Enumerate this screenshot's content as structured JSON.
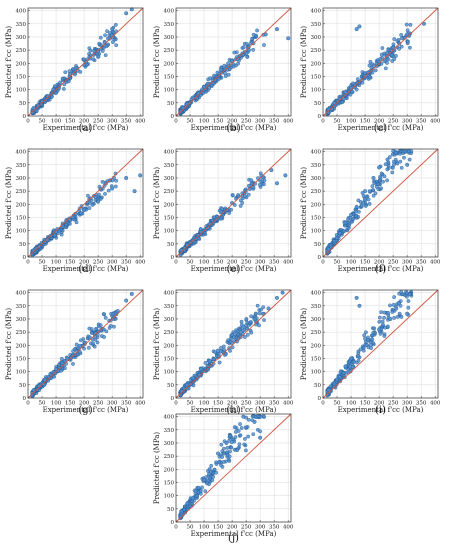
{
  "figure": {
    "panel_labels": [
      "(a)",
      "(b)",
      "(c)",
      "(d)",
      "(e)",
      "(f)",
      "(g)",
      "(h)",
      "(i)",
      "(j)"
    ]
  },
  "chart_data": [
    {
      "type": "scatter",
      "label": "(a)",
      "xlabel": "Experimental f'cc (MPa)",
      "ylabel": "Predicted f'cc (MPa)",
      "xlim": [
        0,
        410
      ],
      "ylim": [
        0,
        410
      ],
      "xticks": [
        0,
        50,
        100,
        150,
        200,
        250,
        300,
        350,
        400
      ],
      "yticks": [
        0,
        50,
        100,
        150,
        200,
        250,
        300,
        350,
        400
      ],
      "grid": true,
      "reference_line": "y = x",
      "point_color": "#4e8fd0",
      "line_color": "#d0553f",
      "trend": {
        "slope": 1.0,
        "noise": 0.22,
        "seed": 11,
        "n": 230
      },
      "points": [
        [
          20,
          30
        ],
        [
          35,
          40
        ],
        [
          50,
          55
        ],
        [
          70,
          75
        ],
        [
          90,
          100
        ],
        [
          110,
          105
        ],
        [
          150,
          160
        ],
        [
          200,
          215
        ],
        [
          250,
          245
        ],
        [
          300,
          330
        ],
        [
          350,
          390
        ],
        [
          370,
          405
        ]
      ]
    },
    {
      "type": "scatter",
      "label": "(b)",
      "xlabel": "Experimental f'cc (MPa)",
      "ylabel": "Predicted f'cc (MPa)",
      "xlim": [
        0,
        410
      ],
      "ylim": [
        0,
        410
      ],
      "xticks": [
        0,
        50,
        100,
        150,
        200,
        250,
        300,
        350,
        400
      ],
      "yticks": [
        0,
        50,
        100,
        150,
        200,
        250,
        300,
        350,
        400
      ],
      "grid": true,
      "reference_line": "y = x",
      "point_color": "#4e8fd0",
      "line_color": "#d0553f",
      "trend": {
        "slope": 1.0,
        "noise": 0.22,
        "seed": 23,
        "n": 230
      },
      "points": [
        [
          25,
          30
        ],
        [
          40,
          45
        ],
        [
          60,
          70
        ],
        [
          80,
          85
        ],
        [
          100,
          110
        ],
        [
          130,
          125
        ],
        [
          160,
          175
        ],
        [
          200,
          210
        ],
        [
          260,
          250
        ],
        [
          320,
          310
        ],
        [
          360,
          330
        ],
        [
          400,
          295
        ]
      ]
    },
    {
      "type": "scatter",
      "label": "(c)",
      "xlabel": "Experimental f'cc (MPa)",
      "ylabel": "Predicted f'cc (MPa)",
      "xlim": [
        0,
        410
      ],
      "ylim": [
        0,
        410
      ],
      "xticks": [
        0,
        50,
        100,
        150,
        200,
        250,
        300,
        350,
        400
      ],
      "yticks": [
        0,
        50,
        100,
        150,
        200,
        250,
        300,
        350,
        400
      ],
      "grid": true,
      "reference_line": "y = x",
      "point_color": "#4e8fd0",
      "line_color": "#d0553f",
      "trend": {
        "slope": 1.0,
        "noise": 0.24,
        "seed": 37,
        "n": 230
      },
      "points": [
        [
          20,
          25
        ],
        [
          40,
          50
        ],
        [
          60,
          65
        ],
        [
          80,
          90
        ],
        [
          100,
          105
        ],
        [
          120,
          330
        ],
        [
          130,
          340
        ],
        [
          160,
          165
        ],
        [
          200,
          205
        ],
        [
          250,
          260
        ],
        [
          300,
          310
        ],
        [
          360,
          350
        ]
      ]
    },
    {
      "type": "scatter",
      "label": "(d)",
      "xlabel": "Experimental f'cc (MPa)",
      "ylabel": "Predicted f'cc (MPa)",
      "xlim": [
        0,
        410
      ],
      "ylim": [
        0,
        410
      ],
      "xticks": [
        0,
        50,
        100,
        150,
        200,
        250,
        300,
        350,
        400
      ],
      "yticks": [
        0,
        50,
        100,
        150,
        200,
        250,
        300,
        350,
        400
      ],
      "grid": true,
      "reference_line": "y = x",
      "point_color": "#4e8fd0",
      "line_color": "#d0553f",
      "trend": {
        "slope": 0.92,
        "noise": 0.18,
        "seed": 41,
        "n": 230
      },
      "points": [
        [
          20,
          25
        ],
        [
          40,
          40
        ],
        [
          60,
          58
        ],
        [
          80,
          80
        ],
        [
          100,
          95
        ],
        [
          150,
          140
        ],
        [
          200,
          180
        ],
        [
          250,
          210
        ],
        [
          300,
          260
        ],
        [
          350,
          300
        ],
        [
          380,
          250
        ],
        [
          400,
          310
        ]
      ]
    },
    {
      "type": "scatter",
      "label": "(e)",
      "xlabel": "Experimental f'cc (MPa)",
      "ylabel": "Predicted f'cc (MPa)",
      "xlim": [
        0,
        410
      ],
      "ylim": [
        0,
        410
      ],
      "xticks": [
        0,
        50,
        100,
        150,
        200,
        250,
        300,
        350,
        400
      ],
      "yticks": [
        0,
        50,
        100,
        150,
        200,
        250,
        300,
        350,
        400
      ],
      "grid": true,
      "reference_line": "y = x",
      "point_color": "#4e8fd0",
      "line_color": "#d0553f",
      "trend": {
        "slope": 1.0,
        "noise": 0.2,
        "seed": 53,
        "n": 230
      },
      "points": [
        [
          20,
          25
        ],
        [
          40,
          45
        ],
        [
          60,
          62
        ],
        [
          90,
          95
        ],
        [
          120,
          125
        ],
        [
          160,
          170
        ],
        [
          200,
          205
        ],
        [
          260,
          270
        ],
        [
          300,
          290
        ],
        [
          340,
          330
        ],
        [
          360,
          280
        ],
        [
          390,
          310
        ]
      ]
    },
    {
      "type": "scatter",
      "label": "(f)",
      "xlabel": "Experimental f'cc (MPa)",
      "ylabel": "Predicted f'cc (MPa)",
      "xlim": [
        0,
        410
      ],
      "ylim": [
        0,
        410
      ],
      "xticks": [
        0,
        50,
        100,
        150,
        200,
        250,
        300,
        350,
        400
      ],
      "yticks": [
        0,
        50,
        100,
        150,
        200,
        250,
        300,
        350,
        400
      ],
      "grid": true,
      "reference_line": "y = x",
      "point_color": "#4e8fd0",
      "line_color": "#d0553f",
      "trend": {
        "slope": 1.45,
        "noise": 0.24,
        "seed": 67,
        "n": 230
      },
      "points": [
        [
          20,
          30
        ],
        [
          40,
          60
        ],
        [
          60,
          90
        ],
        [
          80,
          130
        ],
        [
          100,
          160
        ],
        [
          120,
          190
        ],
        [
          150,
          250
        ],
        [
          180,
          300
        ],
        [
          200,
          340
        ],
        [
          230,
          370
        ],
        [
          260,
          395
        ],
        [
          300,
          350
        ]
      ]
    },
    {
      "type": "scatter",
      "label": "(g)",
      "xlabel": "Experimental f'cc (MPa)",
      "ylabel": "Predicted f'cc (MPa)",
      "xlim": [
        0,
        410
      ],
      "ylim": [
        0,
        410
      ],
      "xticks": [
        0,
        50,
        100,
        150,
        200,
        250,
        300,
        350,
        400
      ],
      "yticks": [
        0,
        50,
        100,
        150,
        200,
        250,
        300,
        350,
        400
      ],
      "grid": true,
      "reference_line": "y = x",
      "point_color": "#4e8fd0",
      "line_color": "#d0553f",
      "trend": {
        "slope": 1.02,
        "noise": 0.22,
        "seed": 79,
        "n": 230
      },
      "points": [
        [
          20,
          30
        ],
        [
          40,
          45
        ],
        [
          60,
          70
        ],
        [
          80,
          90
        ],
        [
          100,
          110
        ],
        [
          140,
          150
        ],
        [
          180,
          190
        ],
        [
          220,
          230
        ],
        [
          270,
          260
        ],
        [
          320,
          330
        ],
        [
          350,
          370
        ],
        [
          370,
          395
        ]
      ]
    },
    {
      "type": "scatter",
      "label": "(h)",
      "xlabel": "Experimental f'cc (MPa)",
      "ylabel": "Predicted f'cc (MPa)",
      "xlim": [
        0,
        410
      ],
      "ylim": [
        0,
        410
      ],
      "xticks": [
        0,
        50,
        100,
        150,
        200,
        250,
        300,
        350,
        400
      ],
      "yticks": [
        0,
        50,
        100,
        150,
        200,
        250,
        300,
        350,
        400
      ],
      "grid": true,
      "reference_line": "y = x",
      "point_color": "#4e8fd0",
      "line_color": "#d0553f",
      "trend": {
        "slope": 1.08,
        "noise": 0.22,
        "seed": 83,
        "n": 230
      },
      "points": [
        [
          20,
          25
        ],
        [
          40,
          50
        ],
        [
          60,
          75
        ],
        [
          90,
          110
        ],
        [
          120,
          140
        ],
        [
          150,
          180
        ],
        [
          200,
          240
        ],
        [
          240,
          270
        ],
        [
          280,
          300
        ],
        [
          330,
          340
        ],
        [
          360,
          380
        ],
        [
          380,
          400
        ]
      ]
    },
    {
      "type": "scatter",
      "label": "(i)",
      "xlabel": "Experimental f'cc (MPa)",
      "ylabel": "Predicted f'cc (MPa)",
      "xlim": [
        0,
        410
      ],
      "ylim": [
        0,
        410
      ],
      "xticks": [
        0,
        50,
        100,
        150,
        200,
        250,
        300,
        350,
        400
      ],
      "yticks": [
        0,
        50,
        100,
        150,
        200,
        250,
        300,
        350,
        400
      ],
      "grid": true,
      "reference_line": "y = x",
      "point_color": "#4e8fd0",
      "line_color": "#d0553f",
      "trend": {
        "slope": 1.3,
        "noise": 0.26,
        "seed": 97,
        "n": 230
      },
      "points": [
        [
          20,
          30
        ],
        [
          40,
          55
        ],
        [
          60,
          80
        ],
        [
          80,
          120
        ],
        [
          100,
          150
        ],
        [
          120,
          380
        ],
        [
          130,
          350
        ],
        [
          160,
          220
        ],
        [
          200,
          260
        ],
        [
          240,
          300
        ],
        [
          270,
          360
        ],
        [
          300,
          320
        ]
      ]
    },
    {
      "type": "scatter",
      "label": "(j)",
      "xlabel": "Experimental f'cc (MPa)",
      "ylabel": "Predicted f'cc (MPa)",
      "xlim": [
        0,
        410
      ],
      "ylim": [
        0,
        410
      ],
      "xticks": [
        0,
        50,
        100,
        150,
        200,
        250,
        300,
        350,
        400
      ],
      "yticks": [
        0,
        50,
        100,
        150,
        200,
        250,
        300,
        350,
        400
      ],
      "grid": true,
      "reference_line": "y = x",
      "point_color": "#4e8fd0",
      "line_color": "#d0553f",
      "trend": {
        "slope": 1.45,
        "noise": 0.3,
        "seed": 101,
        "n": 230
      },
      "points": [
        [
          20,
          40
        ],
        [
          40,
          70
        ],
        [
          60,
          90
        ],
        [
          80,
          130
        ],
        [
          100,
          160
        ],
        [
          120,
          200
        ],
        [
          150,
          260
        ],
        [
          180,
          300
        ],
        [
          210,
          360
        ],
        [
          240,
          400
        ],
        [
          280,
          380
        ],
        [
          300,
          320
        ]
      ]
    }
  ]
}
